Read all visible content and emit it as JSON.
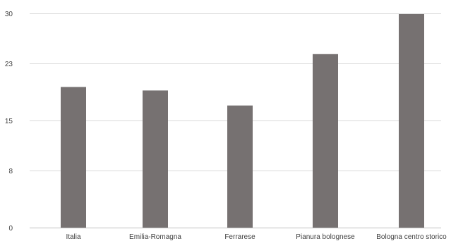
{
  "chart_data": {
    "type": "bar",
    "categories": [
      "Italia",
      "Emilia-Romagna",
      "Ferrarese",
      "Pianura bolognese",
      "Bologna centro storico"
    ],
    "values": [
      19.7,
      19.2,
      17.1,
      24.3,
      29.9
    ],
    "yticks": [
      0,
      8,
      15,
      23,
      30
    ],
    "ylim": [
      0,
      30
    ],
    "grid": true,
    "legend": "none",
    "title": "",
    "xlabel": "",
    "ylabel": "",
    "bar_color": "#767171",
    "grid_color": "#d9d9d9"
  }
}
